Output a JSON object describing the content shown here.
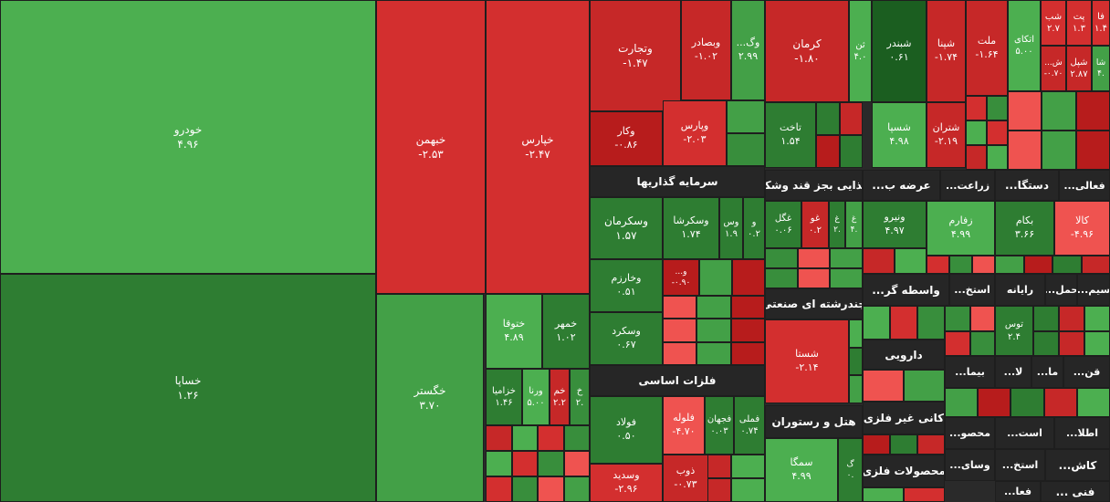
{
  "tiles": [
    {
      "label": "خودرو",
      "change": "۴.۹۶",
      "color": "#4caf50"
    },
    {
      "label": "خساپا",
      "change": "۱.۲۶",
      "color": "#2e7d32"
    },
    {
      "label": "خبهمن",
      "change": "-۲.۵۳",
      "color": "#d32f2f"
    },
    {
      "label": "خپارس",
      "change": "-۲.۴۷",
      "color": "#d32f2f"
    },
    {
      "label": "خگستر",
      "change": "۳.۷۰",
      "color": "#43a047"
    },
    {
      "label": "ختوقا",
      "change": "۴.۸۹",
      "color": "#4caf50"
    },
    {
      "label": "خمهر",
      "change": "۱.۰۲",
      "color": "#2e7d32"
    },
    {
      "label": "خزامیا",
      "change": "۱.۴۶",
      "color": "#2e7d32"
    },
    {
      "label": "ورنا",
      "change": "۵.۰۰",
      "color": "#4caf50"
    },
    {
      "label": "خم",
      "change": "۲.۲",
      "color": "#c62828"
    },
    {
      "label": "خ",
      "change": "۲.",
      "color": "#388e3c"
    },
    {
      "label": "وتجارت",
      "change": "-۱.۴۷",
      "color": "#c62828"
    },
    {
      "label": "وبصادر",
      "change": "-۱.۰۲",
      "color": "#c62828"
    },
    {
      "label": "وگ...",
      "change": "۲.۹۹",
      "color": "#43a047"
    },
    {
      "label": "وکار",
      "change": "-۰.۸۶",
      "color": "#b71c1c"
    },
    {
      "label": "وپارس",
      "change": "-۲.۰۳",
      "color": "#d32f2f"
    },
    {
      "label": "وسکرمان",
      "change": "۱.۵۷",
      "color": "#2e7d32"
    },
    {
      "label": "وسکرشا",
      "change": "۱.۷۴",
      "color": "#2e7d32"
    },
    {
      "label": "وس",
      "change": "۱.۹",
      "color": "#2e7d32"
    },
    {
      "label": "و",
      "change": "۰.۲",
      "color": "#2e7d32"
    },
    {
      "label": "وخارزم",
      "change": "۰.۵۱",
      "color": "#2e7d32"
    },
    {
      "label": "و...",
      "change": "-۰.۹۰",
      "color": "#b71c1c"
    },
    {
      "label": "وسکرد",
      "change": "۰.۶۷",
      "color": "#2e7d32"
    },
    {
      "label": "فولاد",
      "change": "۰.۵۰",
      "color": "#2e7d32"
    },
    {
      "label": "فلوله",
      "change": "-۴.۷۰",
      "color": "#ef5350"
    },
    {
      "label": "فجهان",
      "change": "۰.۰۳",
      "color": "#2e7d32"
    },
    {
      "label": "فملی",
      "change": "۰.۷۴",
      "color": "#2e7d32"
    },
    {
      "label": "وسدید",
      "change": "-۲.۹۶",
      "color": "#d32f2f"
    },
    {
      "label": "ذوب",
      "change": "-۰.۷۳",
      "color": "#c62828"
    },
    {
      "label": "کرمان",
      "change": "-۱.۸۰",
      "color": "#c62828"
    },
    {
      "label": "ثن",
      "change": "۴.۰",
      "color": "#4caf50"
    },
    {
      "label": "تاخت",
      "change": "۱.۵۴",
      "color": "#2e7d32"
    },
    {
      "label": "غگل",
      "change": "۰.۰۶",
      "color": "#2e7d32"
    },
    {
      "label": "غو",
      "change": "۰.۲",
      "color": "#c62828"
    },
    {
      "label": "غ",
      "change": "۲.",
      "color": "#2e7d32"
    },
    {
      "label": "غ",
      "change": "۴.",
      "color": "#43a047"
    },
    {
      "label": "شستا",
      "change": "-۲.۱۴",
      "color": "#d32f2f"
    },
    {
      "label": "سمگا",
      "change": "۴.۹۹",
      "color": "#4caf50"
    },
    {
      "label": "گ",
      "change": "۰.",
      "color": "#2e7d32"
    },
    {
      "label": "شبندر",
      "change": "۰.۶۱",
      "color": "#1b5e20"
    },
    {
      "label": "شپنا",
      "change": "-۱.۷۴",
      "color": "#c62828"
    },
    {
      "label": "ملت",
      "change": "-۱.۶۴",
      "color": "#c62828"
    },
    {
      "label": "اتکای",
      "change": "۵.۰۰",
      "color": "#4caf50"
    },
    {
      "label": "شب",
      "change": "۲.۷",
      "color": "#d32f2f"
    },
    {
      "label": "پت",
      "change": "۱.۳",
      "color": "#d32f2f"
    },
    {
      "label": "فا",
      "change": "۱.۴",
      "color": "#d32f2f"
    },
    {
      "label": "ش...",
      "change": "-۰.۷۰",
      "color": "#c62828"
    },
    {
      "label": "شپل",
      "change": "۲.۸۷",
      "color": "#c62828"
    },
    {
      "label": "شا",
      "change": "۴.",
      "color": "#43a047"
    },
    {
      "label": "شسپا",
      "change": "۴.۹۸",
      "color": "#4caf50"
    },
    {
      "label": "شتران",
      "change": "-۲.۱۹",
      "color": "#c62828"
    },
    {
      "label": "ونیرو",
      "change": "۴.۹۷",
      "color": "#2e7d32"
    },
    {
      "label": "زفارم",
      "change": "۴.۹۹",
      "color": "#4caf50"
    },
    {
      "label": "بکام",
      "change": "۳.۶۶",
      "color": "#2e7d32"
    },
    {
      "label": "کالا",
      "change": "-۴.۹۶",
      "color": "#ef5350"
    },
    {
      "label": "توس",
      "change": "۲.۴",
      "color": "#2e7d32"
    }
  ],
  "sectors": [
    {
      "label": "سرمایه گذاریها"
    },
    {
      "label": "فلزات اساسی"
    },
    {
      "label": "غذایی بجز قند وشکر"
    },
    {
      "label": "چندرشته ای صنعتی"
    },
    {
      "label": "هتل و رستوران"
    },
    {
      "label": "عرضه ب..."
    },
    {
      "label": "زراعت..."
    },
    {
      "label": "دستگا..."
    },
    {
      "label": "فعالی..."
    },
    {
      "label": "واسطه گر..."
    },
    {
      "label": "استخ..."
    },
    {
      "label": "رایانه"
    },
    {
      "label": "حمل..."
    },
    {
      "label": "سیم..."
    },
    {
      "label": "دارویی"
    },
    {
      "label": "کانی غیر فلزی"
    },
    {
      "label": "محصولات فلزی"
    },
    {
      "label": "بیما..."
    },
    {
      "label": "لا..."
    },
    {
      "label": "ما..."
    },
    {
      "label": "قن..."
    },
    {
      "label": "محصو..."
    },
    {
      "label": "است..."
    },
    {
      "label": "اطلا..."
    },
    {
      "label": "وسای..."
    },
    {
      "label": "استخ..."
    },
    {
      "label": "کاش..."
    },
    {
      "label": "فعا..."
    },
    {
      "label": "فنی ..."
    }
  ]
}
